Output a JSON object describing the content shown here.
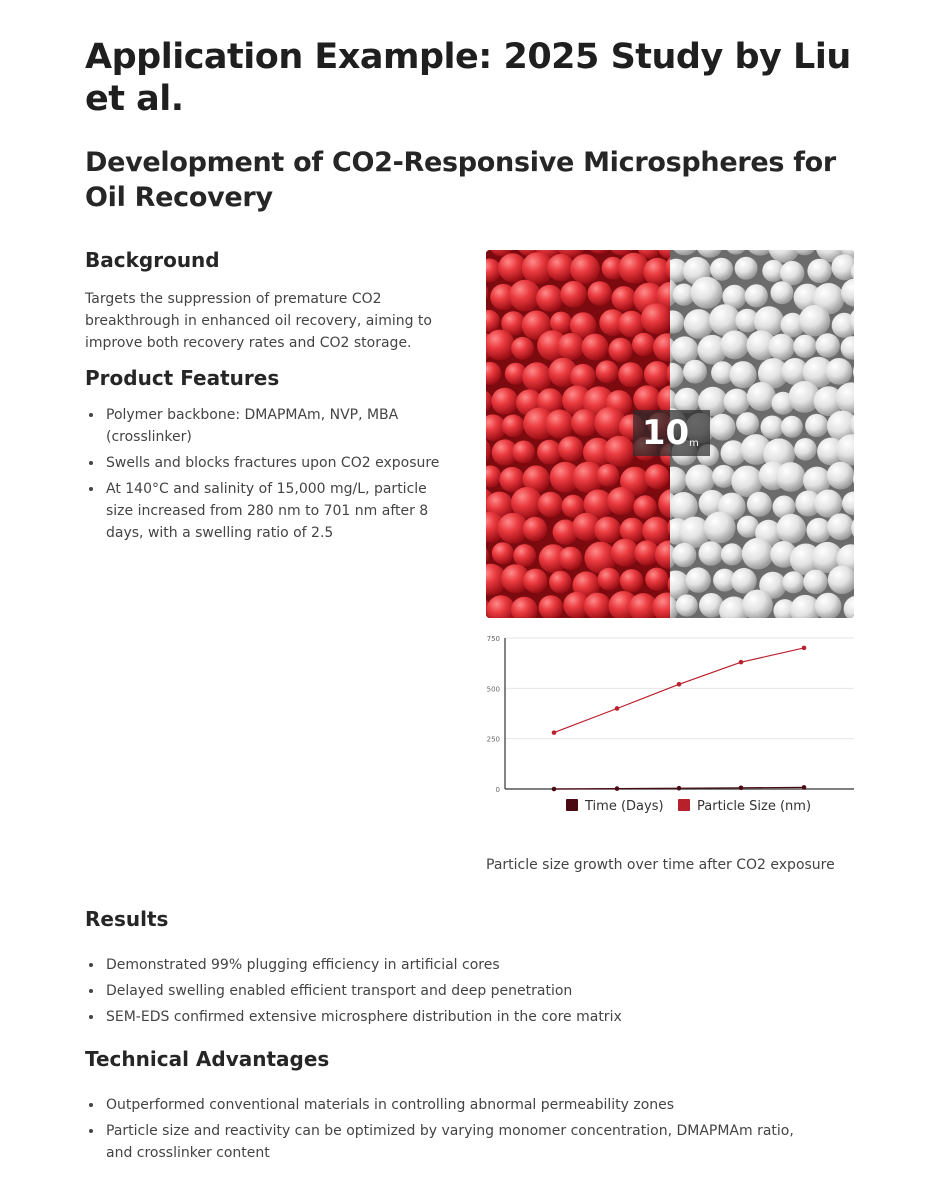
{
  "title": "Application Example: 2025 Study by Liu et al.",
  "subtitle": "Development of CO2-Responsive Microspheres for Oil Recovery",
  "background": {
    "heading": "Background",
    "text": "Targets the suppression of premature CO2 breakthrough in enhanced oil recovery, aiming to improve both recovery rates and CO2 storage."
  },
  "product_features": {
    "heading": "Product Features",
    "items": [
      "Polymer backbone: DMAPMAm, NVP, MBA (crosslinker)",
      "Swells and blocks fractures upon CO2 exposure",
      "At 140°C and salinity of 15,000 mg/L, particle size increased from 280 nm to 701 nm after 8 days, with a swelling ratio of 2.5"
    ]
  },
  "image": {
    "scale_value": "10",
    "scale_unit": "m",
    "colors": {
      "left": "#e0262e",
      "right": "#d9d9d9"
    }
  },
  "chart_data": {
    "type": "line",
    "title": "",
    "xlabel": "",
    "ylabel": "",
    "ylim": [
      0,
      750
    ],
    "yticks": [
      0,
      250,
      500,
      750
    ],
    "x": [
      0,
      1,
      2,
      3,
      4
    ],
    "series": [
      {
        "name": "Time (Days)",
        "color": "#4a0a12",
        "values": [
          0,
          2,
          4,
          6,
          8
        ]
      },
      {
        "name": "Particle Size (nm)",
        "color": "#b8202c",
        "values": [
          280,
          400,
          520,
          630,
          701
        ]
      }
    ],
    "grid": true,
    "legend": "bottom"
  },
  "caption": "Particle size growth over time after CO2 exposure",
  "results": {
    "heading": "Results",
    "items": [
      "Demonstrated 99% plugging efficiency in artificial cores",
      "Delayed swelling enabled efficient transport and deep penetration",
      "SEM-EDS confirmed extensive microsphere distribution in the core matrix"
    ]
  },
  "technical_advantages": {
    "heading": "Technical Advantages",
    "items": [
      "Outperformed conventional materials in controlling abnormal permeability zones",
      "Particle size and reactivity can be optimized by varying monomer concentration, DMAPMAm ratio, and crosslinker content"
    ]
  }
}
